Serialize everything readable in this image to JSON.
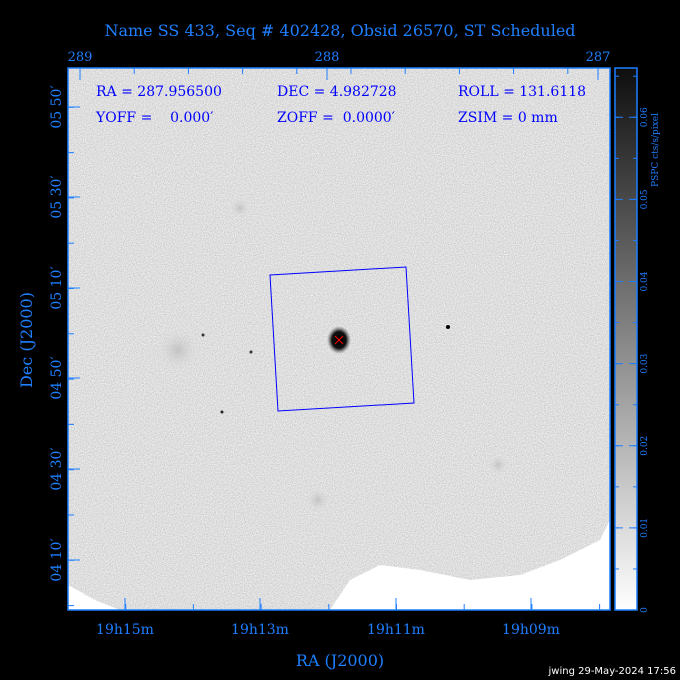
{
  "title": "Name SS 433, Seq # 402428, Obsid 26570, ST Scheduled",
  "info": {
    "ra": "RA = 287.956500",
    "dec": "DEC = 4.982728",
    "roll": "ROLL = 131.6118",
    "yoff": "YOFF =    0.000′",
    "zoff": "ZOFF =  0.0000′",
    "zsim": "ZSIM = 0 mm"
  },
  "footer": "jwing 29-May-2024 17:56",
  "colors": {
    "axis": "#1e7fff",
    "info_text": "#0000ff",
    "fov_box": "#0000ff",
    "source_marker": "#ff0000",
    "background": "#000000"
  },
  "chart_data": {
    "type": "heatmap",
    "title": "Name SS 433, Seq # 402428, Obsid 26570, ST Scheduled",
    "xlabel": "RA (J2000)",
    "ylabel": "Dec (J2000)",
    "x_ticks_bottom": [
      "19h15m",
      "19h13m",
      "19h11m",
      "19h09m"
    ],
    "x_ticks_top": [
      "289",
      "288",
      "287"
    ],
    "y_ticks": [
      "05 50′",
      "05 30′",
      "05 10′",
      "04 50′",
      "04 30′",
      "04 10′"
    ],
    "colorbar": {
      "label": "PSPC cts/s/pixel",
      "ticks": [
        "0",
        "0.01",
        "0.02",
        "0.03",
        "0.04",
        "0.05",
        "0.06"
      ],
      "range": [
        0,
        0.066
      ],
      "colormap": "grayscale (white low, black high)"
    },
    "source": {
      "name": "SS 433",
      "ra_deg": 287.9565,
      "dec_deg": 4.982728
    },
    "fov_box_roll_deg": 131.6118
  }
}
